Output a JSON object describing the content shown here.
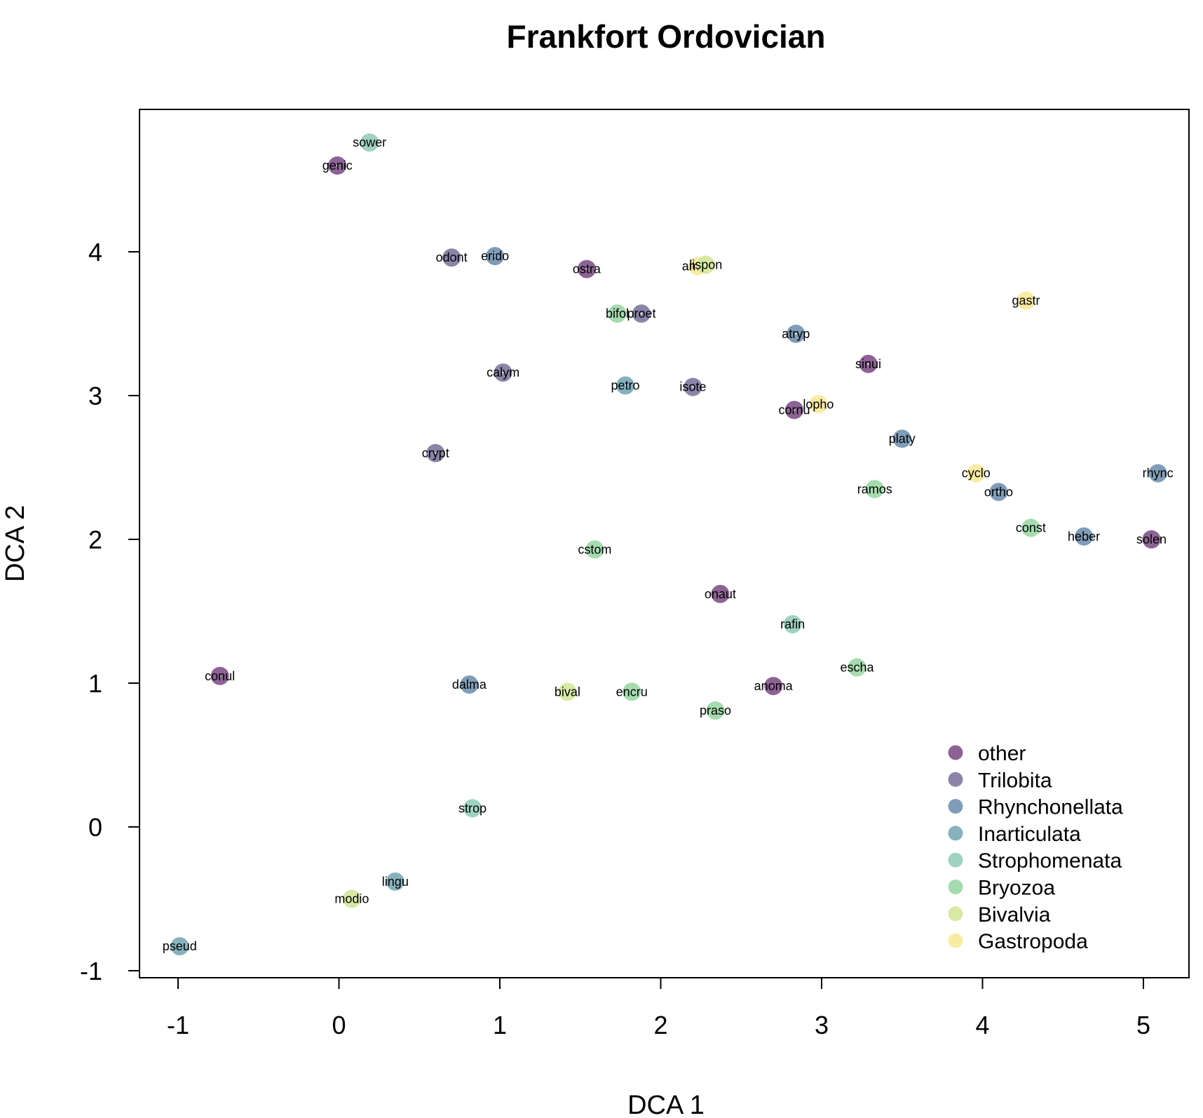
{
  "chart_data": {
    "type": "scatter",
    "title": "Frankfort Ordovician",
    "xlabel": "DCA 1",
    "ylabel": "DCA 2",
    "xlim": [
      -1.25,
      5.3
    ],
    "ylim": [
      -1.05,
      4.95
    ],
    "xticks": [
      -1,
      0,
      1,
      2,
      3,
      4,
      5
    ],
    "yticks": [
      -1,
      0,
      1,
      2,
      3,
      4
    ],
    "grid": false,
    "legend_position": "bottom-right",
    "groups": [
      {
        "name": "other",
        "color": "#8C6394"
      },
      {
        "name": "Trilobita",
        "color": "#8C84A8"
      },
      {
        "name": "Rhynchonellata",
        "color": "#7F9DB8"
      },
      {
        "name": "Inarticulata",
        "color": "#86B2BE"
      },
      {
        "name": "Strophomenata",
        "color": "#9FD2C0"
      },
      {
        "name": "Bryozoa",
        "color": "#A5DCAF"
      },
      {
        "name": "Bivalvia",
        "color": "#D7E9A3"
      },
      {
        "name": "Gastropoda",
        "color": "#FAEBA2"
      }
    ],
    "points": [
      {
        "label": "sower",
        "x": 0.19,
        "y": 4.76,
        "group": "Strophomenata"
      },
      {
        "label": "genic",
        "x": -0.01,
        "y": 4.6,
        "group": "other"
      },
      {
        "label": "odont",
        "x": 0.7,
        "y": 3.96,
        "group": "Trilobita"
      },
      {
        "label": "erido",
        "x": 0.97,
        "y": 3.97,
        "group": "Rhynchonellata"
      },
      {
        "label": "ostra",
        "x": 1.54,
        "y": 3.88,
        "group": "other"
      },
      {
        "label": "ambo",
        "x": 2.23,
        "y": 3.9,
        "group": "Gastropoda"
      },
      {
        "label": "lispon",
        "x": 2.28,
        "y": 3.91,
        "group": "Bivalvia"
      },
      {
        "label": "bifol",
        "x": 1.73,
        "y": 3.57,
        "group": "Bryozoa"
      },
      {
        "label": "proet",
        "x": 1.88,
        "y": 3.57,
        "group": "Trilobita"
      },
      {
        "label": "gastr",
        "x": 4.27,
        "y": 3.66,
        "group": "Gastropoda"
      },
      {
        "label": "atryp",
        "x": 2.84,
        "y": 3.43,
        "group": "Rhynchonellata"
      },
      {
        "label": "calym",
        "x": 1.02,
        "y": 3.16,
        "group": "Trilobita"
      },
      {
        "label": "sinui",
        "x": 3.29,
        "y": 3.22,
        "group": "other"
      },
      {
        "label": "petro",
        "x": 1.78,
        "y": 3.07,
        "group": "Inarticulata"
      },
      {
        "label": "isote",
        "x": 2.2,
        "y": 3.06,
        "group": "Trilobita"
      },
      {
        "label": "cornu",
        "x": 2.83,
        "y": 2.9,
        "group": "other"
      },
      {
        "label": "lopho",
        "x": 2.98,
        "y": 2.94,
        "group": "Gastropoda"
      },
      {
        "label": "platy",
        "x": 3.5,
        "y": 2.7,
        "group": "Rhynchonellata"
      },
      {
        "label": "crypt",
        "x": 0.6,
        "y": 2.6,
        "group": "Trilobita"
      },
      {
        "label": "cyclo",
        "x": 3.96,
        "y": 2.46,
        "group": "Gastropoda"
      },
      {
        "label": "rhync",
        "x": 5.09,
        "y": 2.46,
        "group": "Rhynchonellata"
      },
      {
        "label": "ramos",
        "x": 3.33,
        "y": 2.35,
        "group": "Bryozoa"
      },
      {
        "label": "ortho",
        "x": 4.1,
        "y": 2.33,
        "group": "Rhynchonellata"
      },
      {
        "label": "const",
        "x": 4.3,
        "y": 2.08,
        "group": "Bryozoa"
      },
      {
        "label": "heber",
        "x": 4.63,
        "y": 2.02,
        "group": "Rhynchonellata"
      },
      {
        "label": "solen",
        "x": 5.05,
        "y": 2.0,
        "group": "other"
      },
      {
        "label": "cstom",
        "x": 1.59,
        "y": 1.93,
        "group": "Bryozoa"
      },
      {
        "label": "onaut",
        "x": 2.37,
        "y": 1.62,
        "group": "other"
      },
      {
        "label": "rafin",
        "x": 2.82,
        "y": 1.41,
        "group": "Strophomenata"
      },
      {
        "label": "escha",
        "x": 3.22,
        "y": 1.11,
        "group": "Bryozoa"
      },
      {
        "label": "conul",
        "x": -0.74,
        "y": 1.05,
        "group": "other"
      },
      {
        "label": "dalma",
        "x": 0.81,
        "y": 0.99,
        "group": "Rhynchonellata"
      },
      {
        "label": "anoma",
        "x": 2.7,
        "y": 0.98,
        "group": "other"
      },
      {
        "label": "bival",
        "x": 1.42,
        "y": 0.94,
        "group": "Bivalvia"
      },
      {
        "label": "encru",
        "x": 1.82,
        "y": 0.94,
        "group": "Bryozoa"
      },
      {
        "label": "praso",
        "x": 2.34,
        "y": 0.81,
        "group": "Bryozoa"
      },
      {
        "label": "strop",
        "x": 0.83,
        "y": 0.13,
        "group": "Strophomenata"
      },
      {
        "label": "lingu",
        "x": 0.35,
        "y": -0.38,
        "group": "Inarticulata"
      },
      {
        "label": "modio",
        "x": 0.08,
        "y": -0.5,
        "group": "Bivalvia"
      },
      {
        "label": "pseud",
        "x": -0.99,
        "y": -0.83,
        "group": "Inarticulata"
      }
    ]
  }
}
